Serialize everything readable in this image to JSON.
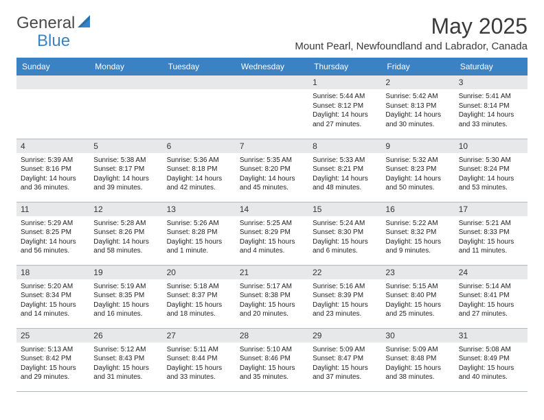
{
  "logo": {
    "part1": "General",
    "part2": "Blue"
  },
  "title": "May 2025",
  "location": "Mount Pearl, Newfoundland and Labrador, Canada",
  "colors": {
    "header_bg": "#3b82c4",
    "header_text": "#ffffff",
    "daynum_bg": "#e6e8ea",
    "border": "#b0b6bc",
    "body_text": "#222222",
    "title_text": "#3a3a3a"
  },
  "day_names": [
    "Sunday",
    "Monday",
    "Tuesday",
    "Wednesday",
    "Thursday",
    "Friday",
    "Saturday"
  ],
  "weeks": [
    [
      null,
      null,
      null,
      null,
      {
        "n": "1",
        "sr": "5:44 AM",
        "ss": "8:12 PM",
        "dl": "14 hours and 27 minutes."
      },
      {
        "n": "2",
        "sr": "5:42 AM",
        "ss": "8:13 PM",
        "dl": "14 hours and 30 minutes."
      },
      {
        "n": "3",
        "sr": "5:41 AM",
        "ss": "8:14 PM",
        "dl": "14 hours and 33 minutes."
      }
    ],
    [
      {
        "n": "4",
        "sr": "5:39 AM",
        "ss": "8:16 PM",
        "dl": "14 hours and 36 minutes."
      },
      {
        "n": "5",
        "sr": "5:38 AM",
        "ss": "8:17 PM",
        "dl": "14 hours and 39 minutes."
      },
      {
        "n": "6",
        "sr": "5:36 AM",
        "ss": "8:18 PM",
        "dl": "14 hours and 42 minutes."
      },
      {
        "n": "7",
        "sr": "5:35 AM",
        "ss": "8:20 PM",
        "dl": "14 hours and 45 minutes."
      },
      {
        "n": "8",
        "sr": "5:33 AM",
        "ss": "8:21 PM",
        "dl": "14 hours and 48 minutes."
      },
      {
        "n": "9",
        "sr": "5:32 AM",
        "ss": "8:23 PM",
        "dl": "14 hours and 50 minutes."
      },
      {
        "n": "10",
        "sr": "5:30 AM",
        "ss": "8:24 PM",
        "dl": "14 hours and 53 minutes."
      }
    ],
    [
      {
        "n": "11",
        "sr": "5:29 AM",
        "ss": "8:25 PM",
        "dl": "14 hours and 56 minutes."
      },
      {
        "n": "12",
        "sr": "5:28 AM",
        "ss": "8:26 PM",
        "dl": "14 hours and 58 minutes."
      },
      {
        "n": "13",
        "sr": "5:26 AM",
        "ss": "8:28 PM",
        "dl": "15 hours and 1 minute."
      },
      {
        "n": "14",
        "sr": "5:25 AM",
        "ss": "8:29 PM",
        "dl": "15 hours and 4 minutes."
      },
      {
        "n": "15",
        "sr": "5:24 AM",
        "ss": "8:30 PM",
        "dl": "15 hours and 6 minutes."
      },
      {
        "n": "16",
        "sr": "5:22 AM",
        "ss": "8:32 PM",
        "dl": "15 hours and 9 minutes."
      },
      {
        "n": "17",
        "sr": "5:21 AM",
        "ss": "8:33 PM",
        "dl": "15 hours and 11 minutes."
      }
    ],
    [
      {
        "n": "18",
        "sr": "5:20 AM",
        "ss": "8:34 PM",
        "dl": "15 hours and 14 minutes."
      },
      {
        "n": "19",
        "sr": "5:19 AM",
        "ss": "8:35 PM",
        "dl": "15 hours and 16 minutes."
      },
      {
        "n": "20",
        "sr": "5:18 AM",
        "ss": "8:37 PM",
        "dl": "15 hours and 18 minutes."
      },
      {
        "n": "21",
        "sr": "5:17 AM",
        "ss": "8:38 PM",
        "dl": "15 hours and 20 minutes."
      },
      {
        "n": "22",
        "sr": "5:16 AM",
        "ss": "8:39 PM",
        "dl": "15 hours and 23 minutes."
      },
      {
        "n": "23",
        "sr": "5:15 AM",
        "ss": "8:40 PM",
        "dl": "15 hours and 25 minutes."
      },
      {
        "n": "24",
        "sr": "5:14 AM",
        "ss": "8:41 PM",
        "dl": "15 hours and 27 minutes."
      }
    ],
    [
      {
        "n": "25",
        "sr": "5:13 AM",
        "ss": "8:42 PM",
        "dl": "15 hours and 29 minutes."
      },
      {
        "n": "26",
        "sr": "5:12 AM",
        "ss": "8:43 PM",
        "dl": "15 hours and 31 minutes."
      },
      {
        "n": "27",
        "sr": "5:11 AM",
        "ss": "8:44 PM",
        "dl": "15 hours and 33 minutes."
      },
      {
        "n": "28",
        "sr": "5:10 AM",
        "ss": "8:46 PM",
        "dl": "15 hours and 35 minutes."
      },
      {
        "n": "29",
        "sr": "5:09 AM",
        "ss": "8:47 PM",
        "dl": "15 hours and 37 minutes."
      },
      {
        "n": "30",
        "sr": "5:09 AM",
        "ss": "8:48 PM",
        "dl": "15 hours and 38 minutes."
      },
      {
        "n": "31",
        "sr": "5:08 AM",
        "ss": "8:49 PM",
        "dl": "15 hours and 40 minutes."
      }
    ]
  ],
  "labels": {
    "sunrise": "Sunrise:",
    "sunset": "Sunset:",
    "daylight": "Daylight:"
  }
}
